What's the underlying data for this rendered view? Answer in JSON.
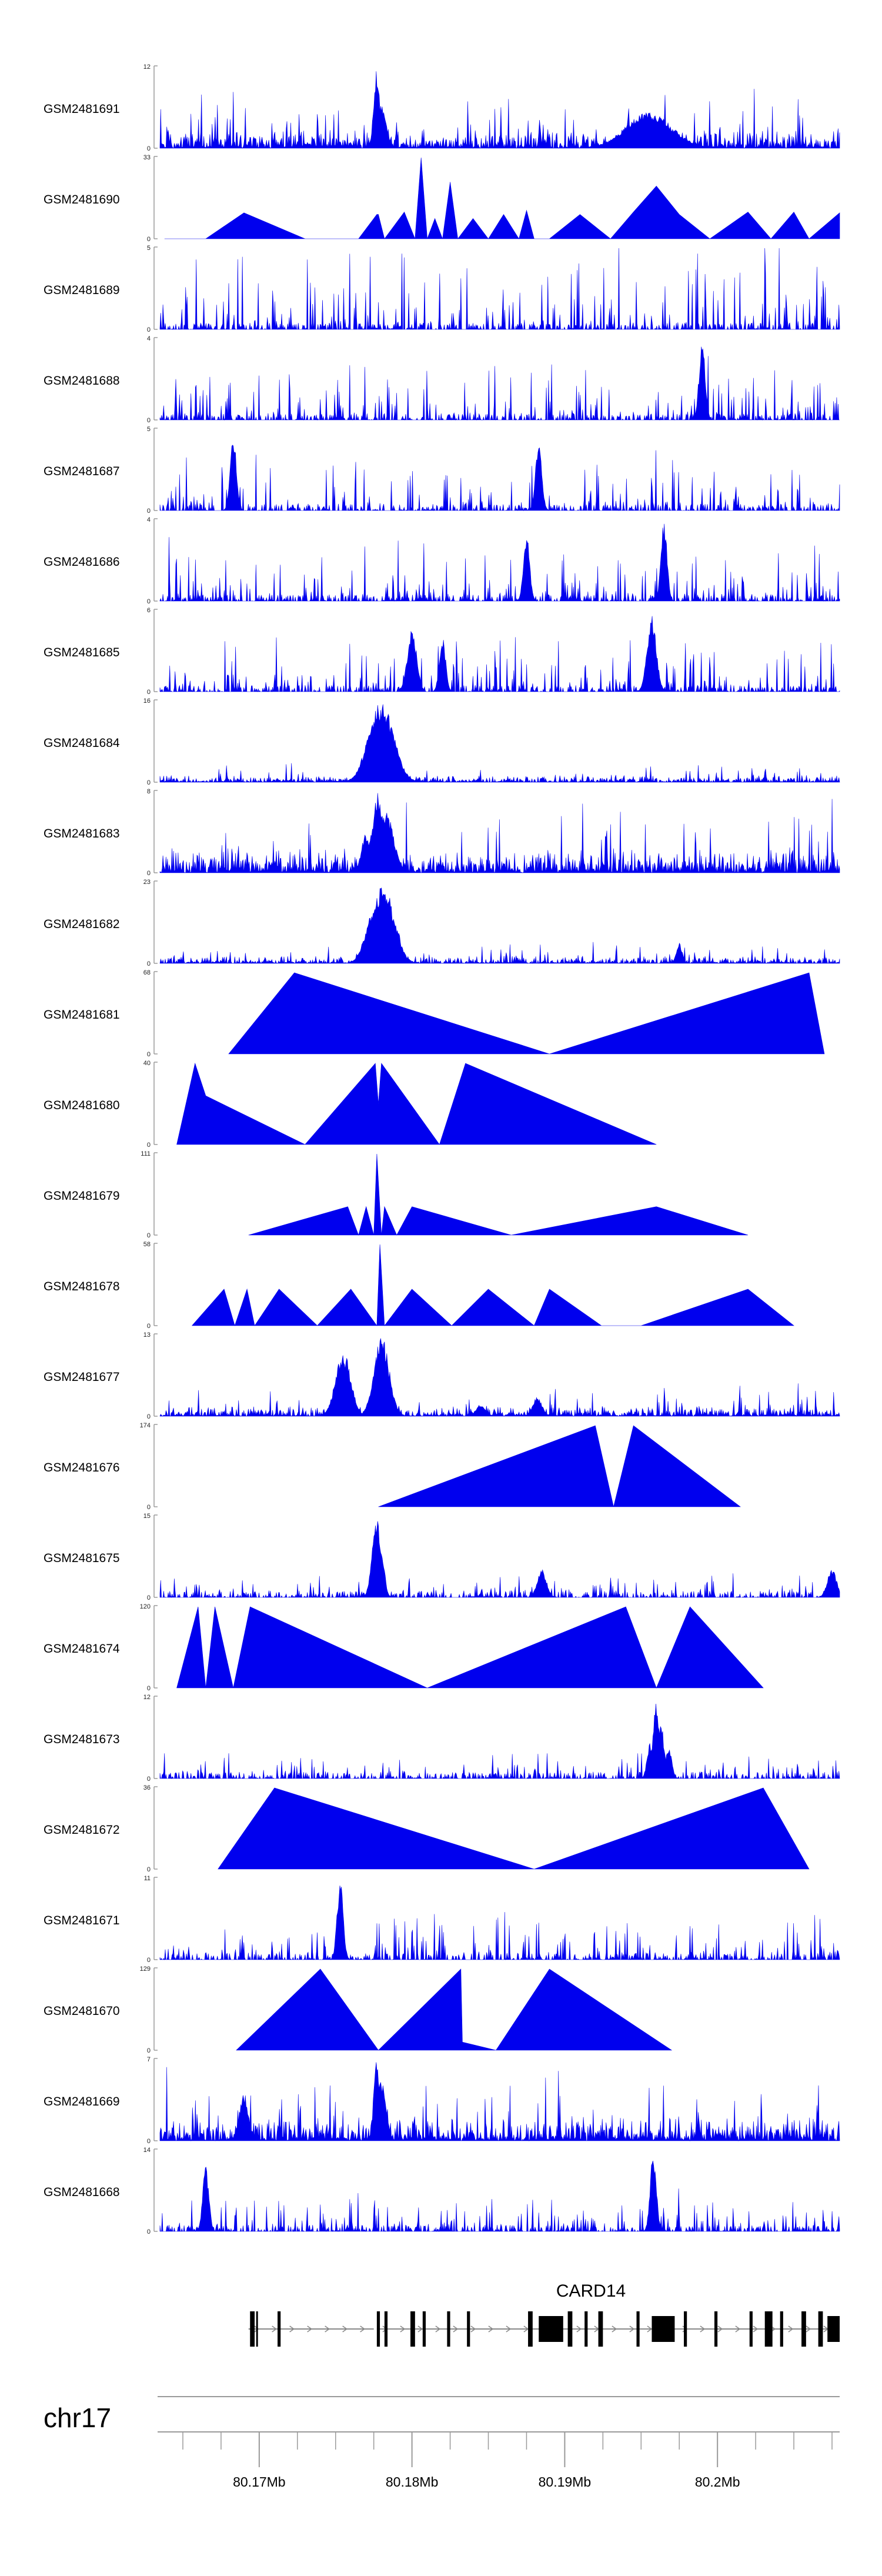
{
  "chart_data": {
    "type": "area",
    "title": "",
    "genome": "chr17",
    "gene_label": "CARD14",
    "x_range_mb": [
      80.1635,
      80.208
    ],
    "x_tick_labels": [
      {
        "mb": 80.17,
        "label": "80.17Mb"
      },
      {
        "mb": 80.18,
        "label": "80.18Mb"
      },
      {
        "mb": 80.19,
        "label": "80.19Mb"
      },
      {
        "mb": 80.2,
        "label": "80.2Mb"
      }
    ],
    "minor_tick_step_mb": 0.0025,
    "gene_structure": {
      "segments_mb": [
        [
          80.1693,
          80.1775
        ],
        [
          80.1777,
          80.208
        ]
      ],
      "exons_mb": [
        [
          80.1694,
          80.1697
        ],
        [
          80.1698,
          80.1699
        ],
        [
          80.1712,
          80.1714
        ],
        [
          80.1777,
          80.1779
        ],
        [
          80.1782,
          80.1784
        ],
        [
          80.1799,
          80.1802
        ],
        [
          80.1807,
          80.1809
        ],
        [
          80.1823,
          80.1825
        ],
        [
          80.1836,
          80.1838
        ],
        [
          80.1876,
          80.1879
        ],
        [
          80.1883,
          80.1899
        ],
        [
          80.1902,
          80.1905
        ],
        [
          80.1913,
          80.1915
        ],
        [
          80.1922,
          80.1925
        ],
        [
          80.1947,
          80.1949
        ],
        [
          80.1957,
          80.1972
        ],
        [
          80.1978,
          80.198
        ],
        [
          80.1998,
          80.2
        ],
        [
          80.2021,
          80.2023
        ],
        [
          80.2031,
          80.2036
        ],
        [
          80.2041,
          80.2043
        ],
        [
          80.2055,
          80.2058
        ],
        [
          80.2066,
          80.2069
        ],
        [
          80.2072,
          80.208
        ]
      ]
    },
    "series": [
      {
        "name": "GSM2481691",
        "ymax": 12,
        "style": "noise",
        "peak_height": 0.36,
        "seed": 11,
        "spikes": [
          [
            80.1777,
            1.0,
            0.0002
          ],
          [
            80.178,
            0.55,
            0.0003
          ],
          [
            80.1955,
            0.45,
            0.0015
          ],
          [
            80.1962,
            0.38,
            0.0004
          ]
        ]
      },
      {
        "name": "GSM2481690",
        "ymax": 33,
        "style": "points",
        "points_mb": [
          [
            80.1638,
            0.0
          ],
          [
            80.1665,
            0.0
          ],
          [
            80.169,
            0.32
          ],
          [
            80.173,
            0.0
          ],
          [
            80.1765,
            0.0
          ],
          [
            80.1777,
            0.3
          ],
          [
            80.1778,
            0.3
          ],
          [
            80.1782,
            0.0
          ],
          [
            80.1795,
            0.33
          ],
          [
            80.1802,
            0.0
          ],
          [
            80.1806,
            1.0
          ],
          [
            80.181,
            0.0
          ],
          [
            80.1815,
            0.25
          ],
          [
            80.182,
            0.0
          ],
          [
            80.1825,
            0.7
          ],
          [
            80.183,
            0.0
          ],
          [
            80.184,
            0.25
          ],
          [
            80.185,
            0.0
          ],
          [
            80.186,
            0.3
          ],
          [
            80.187,
            0.0
          ],
          [
            80.1875,
            0.35
          ],
          [
            80.188,
            0.0
          ],
          [
            80.189,
            0.0
          ],
          [
            80.191,
            0.3
          ],
          [
            80.193,
            0.0
          ],
          [
            80.1945,
            0.33
          ],
          [
            80.196,
            0.65
          ],
          [
            80.1975,
            0.3
          ],
          [
            80.1995,
            0.0
          ],
          [
            80.202,
            0.33
          ],
          [
            80.2035,
            0.0
          ],
          [
            80.205,
            0.33
          ],
          [
            80.206,
            0.0
          ],
          [
            80.208,
            0.32
          ]
        ]
      },
      {
        "name": "GSM2481689",
        "ymax": 5,
        "style": "spiky",
        "peak_height": 0.85,
        "seed": 21,
        "spikes": []
      },
      {
        "name": "GSM2481688",
        "ymax": 4,
        "style": "spiky",
        "peak_height": 0.6,
        "seed": 23,
        "spikes": [
          [
            80.199,
            1.0,
            0.0002
          ]
        ]
      },
      {
        "name": "GSM2481687",
        "ymax": 5,
        "style": "spiky",
        "peak_height": 0.55,
        "seed": 29,
        "spikes": [
          [
            80.1683,
            0.95,
            0.0002
          ],
          [
            80.1883,
            0.9,
            0.0002
          ]
        ]
      },
      {
        "name": "GSM2481686",
        "ymax": 4,
        "style": "spiky",
        "peak_height": 0.6,
        "seed": 31,
        "spikes": [
          [
            80.1965,
            1.0,
            0.0002
          ],
          [
            80.1875,
            0.85,
            0.0002
          ]
        ]
      },
      {
        "name": "GSM2481685",
        "ymax": 6,
        "style": "spiky",
        "peak_height": 0.55,
        "seed": 37,
        "spikes": [
          [
            80.1957,
            0.95,
            0.0003
          ],
          [
            80.18,
            0.8,
            0.0003
          ],
          [
            80.182,
            0.7,
            0.0002
          ]
        ]
      },
      {
        "name": "GSM2481684",
        "ymax": 16,
        "style": "noise",
        "peak_height": 0.12,
        "seed": 41,
        "spikes": [
          [
            80.178,
            1.0,
            0.0008
          ],
          [
            80.1775,
            0.7,
            0.0006
          ],
          [
            80.1786,
            0.65,
            0.0005
          ]
        ]
      },
      {
        "name": "GSM2481683",
        "ymax": 8,
        "style": "noise",
        "peak_height": 0.45,
        "seed": 43,
        "spikes": [
          [
            80.1778,
            1.0,
            0.0004
          ],
          [
            80.1783,
            0.75,
            0.0005
          ],
          [
            80.177,
            0.5,
            0.0003
          ]
        ]
      },
      {
        "name": "GSM2481682",
        "ymax": 23,
        "style": "noise",
        "peak_height": 0.14,
        "seed": 47,
        "spikes": [
          [
            80.1781,
            1.0,
            0.0007
          ],
          [
            80.1776,
            0.7,
            0.0006
          ],
          [
            80.1788,
            0.55,
            0.0004
          ],
          [
            80.1975,
            0.25,
            0.0002
          ]
        ]
      },
      {
        "name": "GSM2481681",
        "ymax": 68,
        "style": "points",
        "points_mb": [
          [
            80.168,
            0.0
          ],
          [
            80.1723,
            1.0
          ],
          [
            80.189,
            0.0
          ],
          [
            80.206,
            1.0
          ],
          [
            80.207,
            0.0
          ]
        ]
      },
      {
        "name": "GSM2481680",
        "ymax": 40,
        "style": "points",
        "points_mb": [
          [
            80.1646,
            0.0
          ],
          [
            80.1658,
            1.0
          ],
          [
            80.1665,
            0.6
          ],
          [
            80.173,
            0.0
          ],
          [
            80.1776,
            1.0
          ],
          [
            80.1778,
            0.5
          ],
          [
            80.178,
            1.0
          ],
          [
            80.1818,
            0.0
          ],
          [
            80.1835,
            1.0
          ],
          [
            80.196,
            0.0
          ]
        ]
      },
      {
        "name": "GSM2481679",
        "ymax": 111,
        "style": "points",
        "points_mb": [
          [
            80.1693,
            0.0
          ],
          [
            80.1758,
            0.35
          ],
          [
            80.1765,
            0.0
          ],
          [
            80.177,
            0.35
          ],
          [
            80.1775,
            0.0
          ],
          [
            80.1777,
            1.0
          ],
          [
            80.178,
            0.0
          ],
          [
            80.1782,
            0.35
          ],
          [
            80.179,
            0.0
          ],
          [
            80.18,
            0.35
          ],
          [
            80.1865,
            0.0
          ],
          [
            80.196,
            0.35
          ],
          [
            80.202,
            0.0
          ]
        ]
      },
      {
        "name": "GSM2481678",
        "ymax": 58,
        "style": "points",
        "points_mb": [
          [
            80.1656,
            0.0
          ],
          [
            80.1677,
            0.45
          ],
          [
            80.1684,
            0.0
          ],
          [
            80.1692,
            0.45
          ],
          [
            80.1697,
            0.0
          ],
          [
            80.1713,
            0.45
          ],
          [
            80.1738,
            0.0
          ],
          [
            80.176,
            0.45
          ],
          [
            80.1777,
            0.0
          ],
          [
            80.1779,
            1.0
          ],
          [
            80.1782,
            0.0
          ],
          [
            80.18,
            0.45
          ],
          [
            80.1826,
            0.0
          ],
          [
            80.185,
            0.45
          ],
          [
            80.188,
            0.0
          ],
          [
            80.189,
            0.45
          ],
          [
            80.1924,
            0.0
          ],
          [
            80.195,
            0.0
          ],
          [
            80.202,
            0.45
          ],
          [
            80.205,
            0.0
          ]
        ]
      },
      {
        "name": "GSM2481677",
        "ymax": 13,
        "style": "noise",
        "peak_height": 0.2,
        "seed": 53,
        "spikes": [
          [
            80.1755,
            0.8,
            0.0005
          ],
          [
            80.178,
            1.0,
            0.0005
          ],
          [
            80.1882,
            0.25,
            0.0003
          ],
          [
            80.1845,
            0.15,
            0.0003
          ]
        ]
      },
      {
        "name": "GSM2481676",
        "ymax": 174,
        "style": "points",
        "points_mb": [
          [
            80.1778,
            0.0
          ],
          [
            80.192,
            1.0
          ],
          [
            80.1932,
            0.0
          ],
          [
            80.1945,
            1.0
          ],
          [
            80.2015,
            0.0
          ]
        ]
      },
      {
        "name": "GSM2481675",
        "ymax": 15,
        "style": "spiky",
        "peak_height": 0.25,
        "seed": 59,
        "spikes": [
          [
            80.1777,
            1.0,
            0.0003
          ],
          [
            80.178,
            0.6,
            0.0002
          ],
          [
            80.1885,
            0.35,
            0.0003
          ],
          [
            80.2075,
            0.35,
            0.0003
          ]
        ]
      },
      {
        "name": "GSM2481674",
        "ymax": 120,
        "style": "points",
        "points_mb": [
          [
            80.1646,
            0.0
          ],
          [
            80.166,
            1.0
          ],
          [
            80.1665,
            0.0
          ],
          [
            80.1671,
            1.0
          ],
          [
            80.1683,
            0.0
          ],
          [
            80.1694,
            1.0
          ],
          [
            80.181,
            0.0
          ],
          [
            80.194,
            1.0
          ],
          [
            80.196,
            0.0
          ],
          [
            80.1982,
            1.0
          ],
          [
            80.203,
            0.0
          ]
        ]
      },
      {
        "name": "GSM2481673",
        "ymax": 12,
        "style": "spiky",
        "peak_height": 0.25,
        "seed": 61,
        "spikes": [
          [
            80.196,
            1.0,
            0.0002
          ],
          [
            80.1963,
            0.7,
            0.0002
          ],
          [
            80.1956,
            0.45,
            0.0002
          ],
          [
            80.1968,
            0.4,
            0.0002
          ]
        ]
      },
      {
        "name": "GSM2481672",
        "ymax": 36,
        "style": "points",
        "points_mb": [
          [
            80.1673,
            0.0
          ],
          [
            80.171,
            1.0
          ],
          [
            80.188,
            0.0
          ],
          [
            80.203,
            1.0
          ],
          [
            80.206,
            0.0
          ]
        ]
      },
      {
        "name": "GSM2481671",
        "ymax": 11,
        "style": "spiky",
        "peak_height": 0.45,
        "seed": 67,
        "spikes": [
          [
            80.1753,
            1.0,
            0.0002
          ]
        ]
      },
      {
        "name": "GSM2481670",
        "ymax": 129,
        "style": "points",
        "points_mb": [
          [
            80.1685,
            0.0
          ],
          [
            80.174,
            1.0
          ],
          [
            80.1778,
            0.0
          ],
          [
            80.1832,
            1.0
          ],
          [
            80.1833,
            0.1
          ],
          [
            80.1855,
            0.0
          ],
          [
            80.189,
            1.0
          ],
          [
            80.197,
            0.0
          ]
        ]
      },
      {
        "name": "GSM2481669",
        "ymax": 7,
        "style": "noise",
        "peak_height": 0.45,
        "seed": 71,
        "spikes": [
          [
            80.1777,
            1.0,
            0.0002
          ],
          [
            80.178,
            0.75,
            0.0003
          ],
          [
            80.169,
            0.6,
            0.0003
          ]
        ]
      },
      {
        "name": "GSM2481668",
        "ymax": 14,
        "style": "spiky",
        "peak_height": 0.38,
        "seed": 73,
        "spikes": [
          [
            80.1958,
            1.0,
            0.0002
          ],
          [
            80.1665,
            0.8,
            0.0002
          ]
        ]
      }
    ]
  }
}
